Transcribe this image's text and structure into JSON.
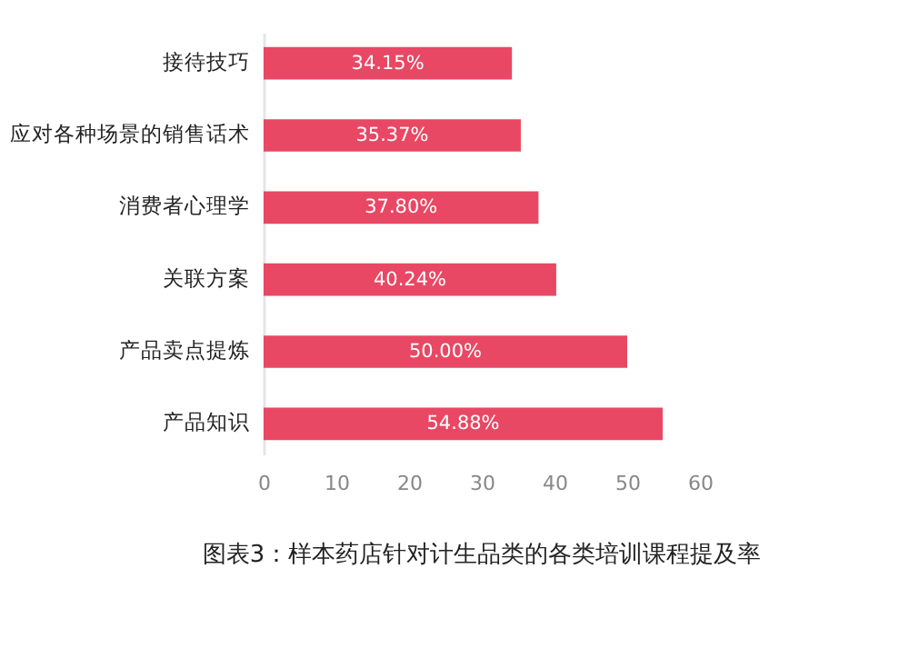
{
  "chart_data": {
    "type": "bar",
    "orientation": "horizontal",
    "categories": [
      "接待技巧",
      "应对各种场景的销售话术",
      "消费者心理学",
      "关联方案",
      "产品卖点提炼",
      "产品知识"
    ],
    "values": [
      34.15,
      35.37,
      37.8,
      40.24,
      50.0,
      54.88
    ],
    "value_labels": [
      "34.15%",
      "35.37%",
      "37.80%",
      "40.24%",
      "50.00%",
      "54.88%"
    ],
    "color": "#e84864",
    "xlim": [
      0,
      60
    ],
    "xticks": [
      0,
      10,
      20,
      30,
      40,
      50,
      60
    ],
    "annotations": [
      "图表3：样本药店针对计生品类的各类培训课程提及率"
    ]
  }
}
